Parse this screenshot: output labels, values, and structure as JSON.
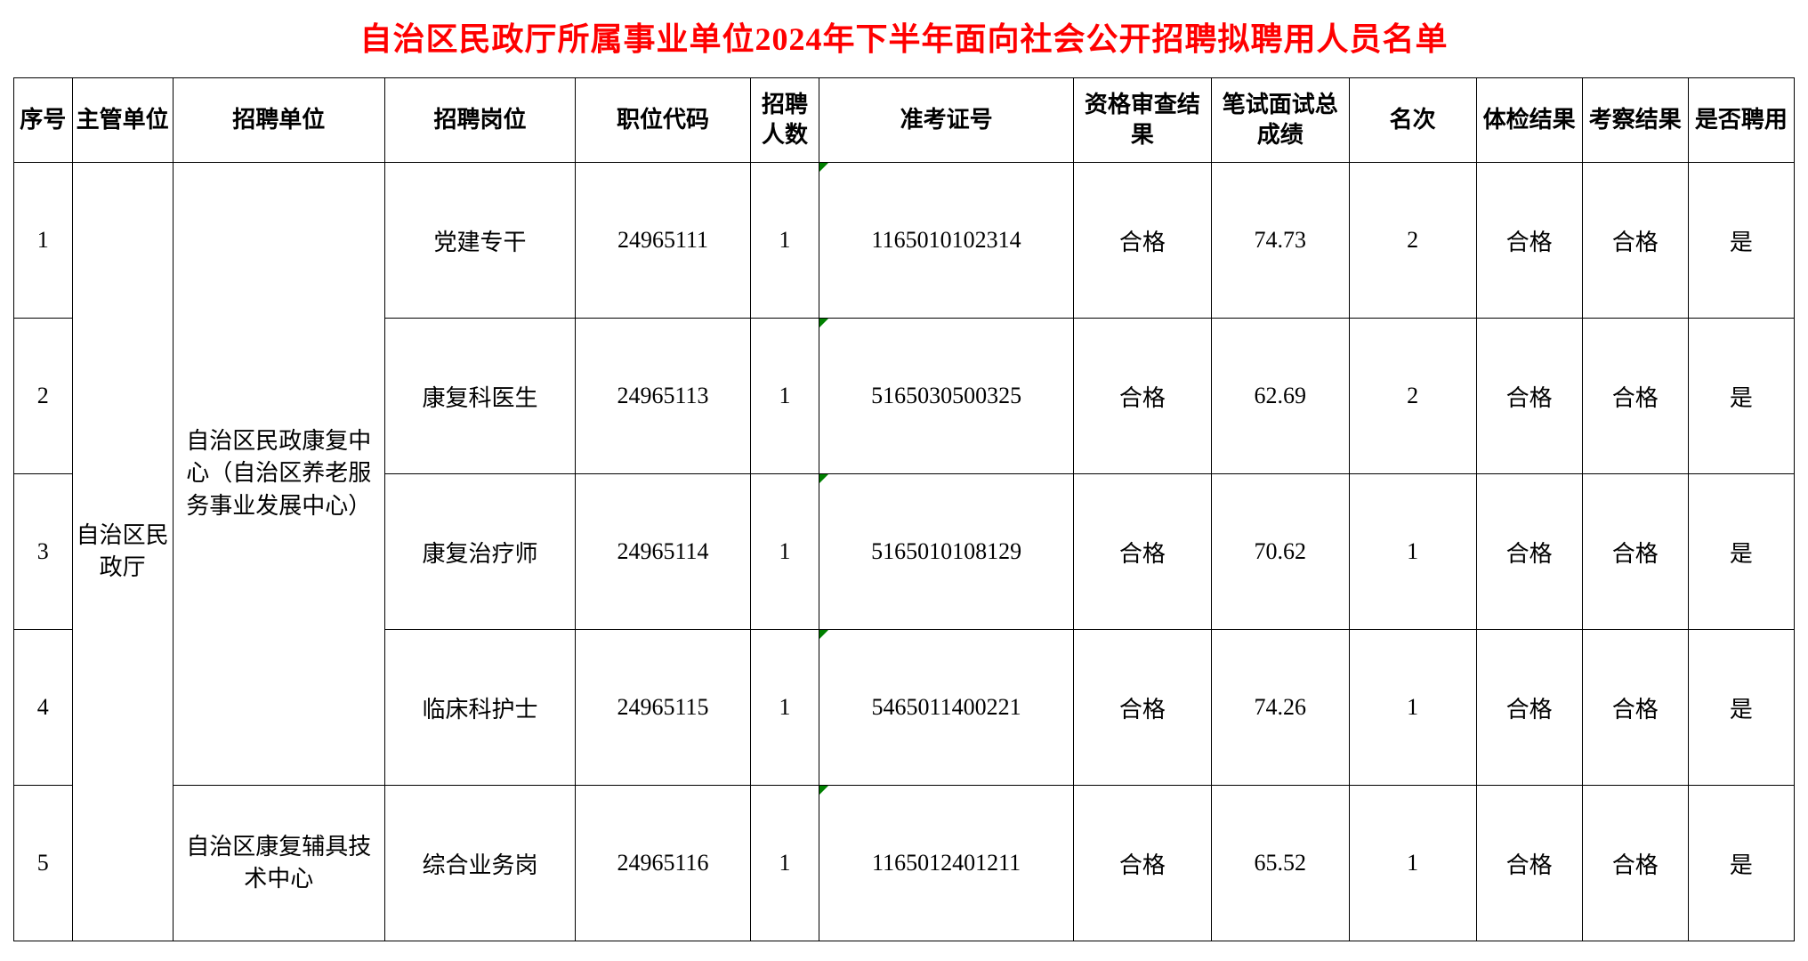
{
  "title": "自治区民政厅所属事业单位2024年下半年面向社会公开招聘拟聘用人员名单",
  "headers": {
    "seq": "序号",
    "dept": "主管单位",
    "unit": "招聘单位",
    "position": "招聘岗位",
    "code": "职位代码",
    "count": "招聘人数",
    "exam": "准考证号",
    "qual": "资格审查结果",
    "score": "笔试面试总成绩",
    "rank": "名次",
    "physical": "体检结果",
    "inspect": "考察结果",
    "hire": "是否聘用"
  },
  "dept_merged": "自治区民政厅",
  "unit1": "自治区民政康复中心（自治区养老服务事业发展中心）",
  "unit2": "自治区康复辅具技术中心",
  "rows": [
    {
      "seq": "1",
      "position": "党建专干",
      "code": "24965111",
      "count": "1",
      "exam": "1165010102314",
      "qual": "合格",
      "score": "74.73",
      "rank": "2",
      "physical": "合格",
      "inspect": "合格",
      "hire": "是"
    },
    {
      "seq": "2",
      "position": "康复科医生",
      "code": "24965113",
      "count": "1",
      "exam": "5165030500325",
      "qual": "合格",
      "score": "62.69",
      "rank": "2",
      "physical": "合格",
      "inspect": "合格",
      "hire": "是"
    },
    {
      "seq": "3",
      "position": "康复治疗师",
      "code": "24965114",
      "count": "1",
      "exam": "5165010108129",
      "qual": "合格",
      "score": "70.62",
      "rank": "1",
      "physical": "合格",
      "inspect": "合格",
      "hire": "是"
    },
    {
      "seq": "4",
      "position": "临床科护士",
      "code": "24965115",
      "count": "1",
      "exam": "5465011400221",
      "qual": "合格",
      "score": "74.26",
      "rank": "1",
      "physical": "合格",
      "inspect": "合格",
      "hire": "是"
    },
    {
      "seq": "5",
      "position": "综合业务岗",
      "code": "24965116",
      "count": "1",
      "exam": "1165012401211",
      "qual": "合格",
      "score": "65.52",
      "rank": "1",
      "physical": "合格",
      "inspect": "合格",
      "hire": "是"
    }
  ]
}
